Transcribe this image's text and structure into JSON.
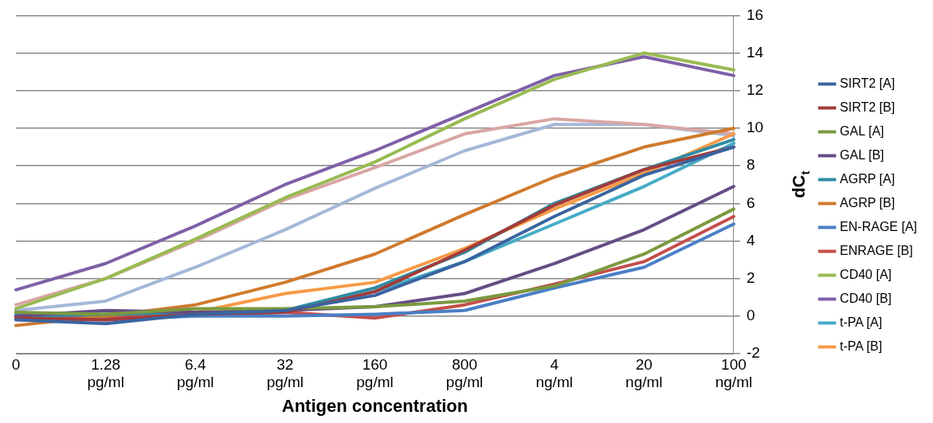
{
  "chart_data": {
    "type": "line",
    "xlabel": "Antigen concentration",
    "ylabel": "dC$_{t}$",
    "categories": [
      "0",
      "1.28 pg/ml",
      "6.4 pg/ml",
      "32 pg/ml",
      "160 pg/ml",
      "800 pg/ml",
      "4 ng/ml",
      "20 ng/ml",
      "100 ng/ml"
    ],
    "series": [
      {
        "name": "SIRT2 [A]",
        "color": "#3a64a0",
        "values": [
          -0.2,
          -0.4,
          0.1,
          0.3,
          1.1,
          2.9,
          5.3,
          7.5,
          9.0
        ]
      },
      {
        "name": "SIRT2 [B]",
        "color": "#a33b39",
        "values": [
          -0.1,
          -0.2,
          0.1,
          0.2,
          1.3,
          3.5,
          5.9,
          7.8,
          9.0
        ]
      },
      {
        "name": "GAL [A]",
        "color": "#7a9a3f",
        "values": [
          0.2,
          0.1,
          0.4,
          0.4,
          0.5,
          0.8,
          1.6,
          3.3,
          5.7
        ]
      },
      {
        "name": "GAL [B]",
        "color": "#664c86",
        "values": [
          0.0,
          0.3,
          0.2,
          0.3,
          0.5,
          1.2,
          2.8,
          4.6,
          6.9
        ]
      },
      {
        "name": "AGRP [A]",
        "color": "#2f8ca4",
        "values": [
          0.0,
          0.1,
          0.2,
          0.3,
          1.5,
          3.4,
          6.0,
          7.8,
          9.4
        ]
      },
      {
        "name": "AGRP [B]",
        "color": "#d07a2e",
        "values": [
          -0.5,
          0.0,
          0.6,
          1.8,
          3.3,
          5.4,
          7.4,
          9.0,
          10.0
        ]
      },
      {
        "name": "EN-RAGE [A]",
        "color": "#4a7fc6",
        "values": [
          -0.1,
          -0.2,
          0.0,
          0.0,
          0.1,
          0.3,
          1.5,
          2.6,
          4.9
        ]
      },
      {
        "name": "ENRAGE [B]",
        "color": "#c44e4b",
        "values": [
          -0.1,
          -0.1,
          0.1,
          0.2,
          -0.1,
          0.6,
          1.7,
          2.9,
          5.3
        ]
      },
      {
        "name": "CD40 [A]",
        "color": "#98bb52",
        "values": [
          0.4,
          2.0,
          4.1,
          6.3,
          8.2,
          10.5,
          12.6,
          14.0,
          13.1
        ]
      },
      {
        "name": "CD40 [B]",
        "color": "#7f60a8",
        "values": [
          1.4,
          2.8,
          4.8,
          7.0,
          8.8,
          10.8,
          12.8,
          13.8,
          12.8
        ]
      },
      {
        "name": "t-PA [A]",
        "color": "#45acc7",
        "values": [
          0.1,
          0.0,
          0.0,
          0.2,
          1.3,
          2.9,
          4.9,
          6.9,
          9.2
        ]
      },
      {
        "name": "t-PA [B]",
        "color": "#f79a46",
        "values": [
          0.2,
          -0.1,
          0.2,
          1.2,
          1.8,
          3.6,
          5.7,
          7.6,
          9.7
        ]
      },
      {
        "color": "#d9a6a4",
        "values": [
          0.6,
          2.0,
          4.0,
          6.2,
          7.9,
          9.7,
          10.5,
          10.2,
          9.7
        ]
      },
      {
        "color": "#a5b8d8",
        "values": [
          0.3,
          0.8,
          2.6,
          4.6,
          6.8,
          8.8,
          10.2,
          10.2,
          9.6
        ]
      }
    ],
    "ylim": [
      -2,
      16
    ],
    "yticks": [
      -2,
      0,
      2,
      4,
      6,
      8,
      10,
      12,
      14,
      16
    ],
    "grid": "y",
    "legend": "right",
    "marker": "none",
    "line_style": "solid"
  }
}
